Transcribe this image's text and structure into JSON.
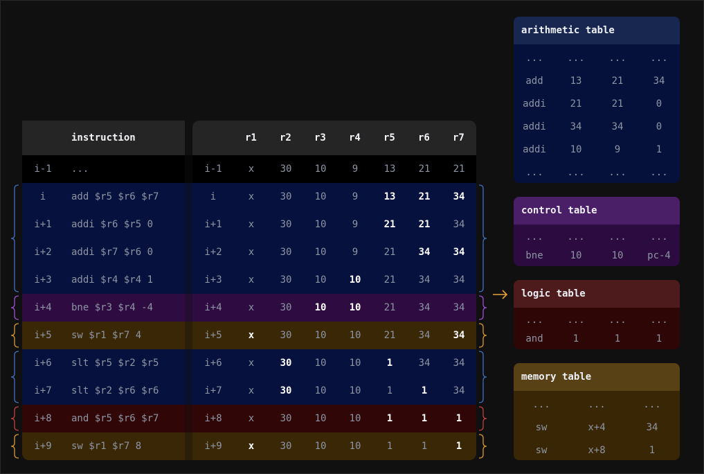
{
  "instruction_header": "instruction",
  "registers": [
    "r1",
    "r2",
    "r3",
    "r4",
    "r5",
    "r6",
    "r7"
  ],
  "colors": {
    "arithmetic": "#06113d",
    "control": "#2e0c42",
    "logic": "#300606",
    "memory": "#3a2705",
    "brace_arithmetic": "#3d6fc4",
    "brace_control": "#9b4fd0",
    "brace_logic": "#c04040",
    "brace_memory": "#d49a2a",
    "arrow": "#e8a135"
  },
  "rows": [
    {
      "label": "i-1",
      "instr": "...",
      "type": "none",
      "regs": [
        "x",
        "30",
        "10",
        "9",
        "13",
        "21",
        "21"
      ],
      "bold": []
    },
    {
      "label": "i",
      "instr": "add $r5 $r6 $r7",
      "type": "arithmetic",
      "regs": [
        "x",
        "30",
        "10",
        "9",
        "13",
        "21",
        "34"
      ],
      "bold": [
        4,
        5,
        6
      ]
    },
    {
      "label": "i+1",
      "instr": "addi $r6 $r5 0",
      "type": "arithmetic",
      "regs": [
        "x",
        "30",
        "10",
        "9",
        "21",
        "21",
        "34"
      ],
      "bold": [
        4,
        5
      ]
    },
    {
      "label": "i+2",
      "instr": "addi $r7 $r6 0",
      "type": "arithmetic",
      "regs": [
        "x",
        "30",
        "10",
        "9",
        "21",
        "34",
        "34"
      ],
      "bold": [
        5,
        6
      ]
    },
    {
      "label": "i+3",
      "instr": "addi $r4 $r4 1",
      "type": "arithmetic",
      "regs": [
        "x",
        "30",
        "10",
        "10",
        "21",
        "34",
        "34"
      ],
      "bold": [
        3
      ]
    },
    {
      "label": "i+4",
      "instr": "bne $r3 $r4 -4",
      "type": "control",
      "regs": [
        "x",
        "30",
        "10",
        "10",
        "21",
        "34",
        "34"
      ],
      "bold": [
        2,
        3
      ]
    },
    {
      "label": "i+5",
      "instr": "sw $r1 $r7 4",
      "type": "memory",
      "regs": [
        "x",
        "30",
        "10",
        "10",
        "21",
        "34",
        "34"
      ],
      "bold": [
        0,
        6
      ]
    },
    {
      "label": "i+6",
      "instr": "slt $r5 $r2 $r5",
      "type": "arithmetic",
      "regs": [
        "x",
        "30",
        "10",
        "10",
        "1",
        "34",
        "34"
      ],
      "bold": [
        1,
        4
      ]
    },
    {
      "label": "i+7",
      "instr": "slt $r2 $r6 $r6",
      "type": "arithmetic",
      "regs": [
        "x",
        "30",
        "10",
        "10",
        "1",
        "1",
        "34"
      ],
      "bold": [
        1,
        5
      ]
    },
    {
      "label": "i+8",
      "instr": "and $r5 $r6 $r7",
      "type": "logic",
      "regs": [
        "x",
        "30",
        "10",
        "10",
        "1",
        "1",
        "1"
      ],
      "bold": [
        4,
        5,
        6
      ]
    },
    {
      "label": "i+9",
      "instr": "sw $r1 $r7 8",
      "type": "memory",
      "regs": [
        "x",
        "30",
        "10",
        "10",
        "1",
        "1",
        "1"
      ],
      "bold": [
        0,
        6
      ]
    }
  ],
  "tables": [
    {
      "key": "arithmetic",
      "title": "arithmetic table",
      "header_bg": "#182750",
      "body_bg": "#05113b",
      "rows": [
        [
          "...",
          "...",
          "...",
          "..."
        ],
        [
          "add",
          "13",
          "21",
          "34"
        ],
        [
          "addi",
          "21",
          "21",
          "0"
        ],
        [
          "addi",
          "34",
          "34",
          "0"
        ],
        [
          "addi",
          "10",
          "9",
          "1"
        ],
        [
          "...",
          "...",
          "...",
          "..."
        ]
      ]
    },
    {
      "key": "control",
      "title": "control table",
      "header_bg": "#4b1f67",
      "body_bg": "#2b0b40",
      "rows": [
        [
          "...",
          "...",
          "...",
          "..."
        ],
        [
          "bne",
          "10",
          "10",
          "pc-4"
        ]
      ]
    },
    {
      "key": "logic",
      "title": "logic table",
      "header_bg": "#4d1b1b",
      "body_bg": "#2f0606",
      "rows": [
        [
          "...",
          "...",
          "...",
          "..."
        ],
        [
          "and",
          "1",
          "1",
          "1"
        ]
      ]
    },
    {
      "key": "memory",
      "title": "memory table",
      "header_bg": "#584114",
      "body_bg": "#382604",
      "rows": [
        [
          "...",
          "...",
          "..."
        ],
        [
          "sw",
          "x+4",
          "34"
        ],
        [
          "sw",
          "x+8",
          "1"
        ]
      ]
    }
  ]
}
